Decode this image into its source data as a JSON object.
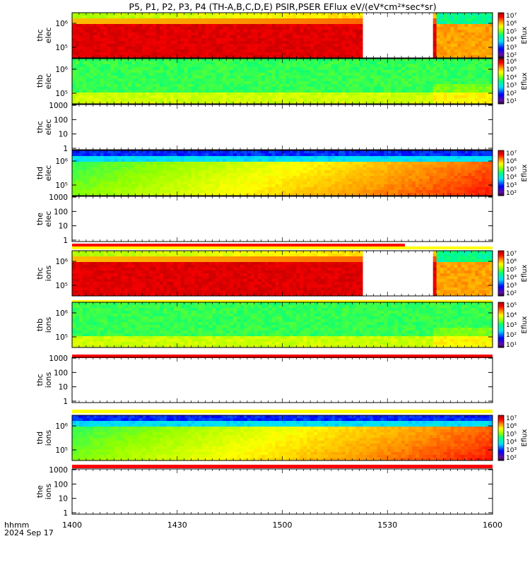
{
  "chart_data": {
    "type": "heatmap",
    "title": "P5, P1, P2, P3, P4 (TH-A,B,C,D,E) PSIR,PSER EFlux eV/(eV*cm²*sec*sr)",
    "x_label": "hhmm",
    "date_label": "2024 Sep 17",
    "x_ticks": [
      "1400",
      "1430",
      "1500",
      "1530",
      "1600"
    ],
    "xlim": [
      "1400",
      "1600"
    ],
    "panels": [
      {
        "label": "thc elec",
        "label_line1": "thc",
        "label_line2": "elec",
        "ylabels": [
          "10⁵",
          "10⁶"
        ],
        "colorbar": true,
        "cb_title": "Eflux",
        "cb_labels": [
          "10⁷",
          "10⁶",
          "10⁵",
          "10⁴",
          "10³",
          "10²"
        ],
        "pattern": "dense-red",
        "gap": [
          "1523",
          "1543"
        ]
      },
      {
        "label": "thb elec",
        "label_line1": "thb",
        "label_line2": "elec",
        "ylabels": [
          "10⁵",
          "10⁶"
        ],
        "colorbar": true,
        "cb_title": "Eflux",
        "cb_labels": [
          "10⁶",
          "10⁵",
          "10⁴",
          "10³",
          "10²",
          "10¹"
        ],
        "pattern": "green"
      },
      {
        "label": "thc elec",
        "label_line1": "thc",
        "label_line2": "elec",
        "ylabels": [
          "1",
          "10",
          "100",
          "1000"
        ],
        "colorbar": false,
        "pattern": "empty"
      },
      {
        "label": "thd elec",
        "label_line1": "thd",
        "label_line2": "elec",
        "ylabels": [
          "10⁵",
          "10⁶"
        ],
        "colorbar": true,
        "cb_title": "Eflux",
        "cb_labels": [
          "10⁷",
          "10⁶",
          "10⁵",
          "10⁴",
          "10³",
          "10²"
        ],
        "pattern": "gradient"
      },
      {
        "label": "the elec",
        "label_line1": "the",
        "label_line2": "elec",
        "ylabels": [
          "1",
          "10",
          "100",
          "1000"
        ],
        "colorbar": false,
        "pattern": "empty"
      },
      {
        "label": "thc ions",
        "label_line1": "thc",
        "label_line2": "ions",
        "ylabels": [
          "10⁵",
          "10⁶"
        ],
        "colorbar": true,
        "cb_title": "Eflux",
        "cb_labels": [
          "10⁷",
          "10⁶",
          "10⁵",
          "10⁴",
          "10³",
          "10²"
        ],
        "pattern": "dense-red",
        "gap": [
          "1523",
          "1543"
        ]
      },
      {
        "label": "thb ions",
        "label_line1": "thb",
        "label_line2": "ions",
        "ylabels": [
          "10⁵",
          "10⁶"
        ],
        "colorbar": true,
        "cb_title": "Eflux",
        "cb_labels": [
          "10⁵",
          "10⁴",
          "10³",
          "10²",
          "10¹"
        ],
        "pattern": "green"
      },
      {
        "label": "thc ions",
        "label_line1": "thc",
        "label_line2": "ions",
        "ylabels": [
          "1",
          "10",
          "100",
          "1000"
        ],
        "colorbar": false,
        "pattern": "empty"
      },
      {
        "label": "thd ions",
        "label_line1": "thd",
        "label_line2": "ions",
        "ylabels": [
          "10⁵",
          "10⁶"
        ],
        "colorbar": true,
        "cb_title": "Eflux",
        "cb_labels": [
          "10⁷",
          "10⁶",
          "10⁵",
          "10⁴",
          "10³",
          "10²"
        ],
        "pattern": "gradient"
      },
      {
        "label": "the ions",
        "label_line1": "the",
        "label_line2": "ions",
        "ylabels": [
          "1",
          "10",
          "100",
          "1000"
        ],
        "colorbar": false,
        "pattern": "empty"
      }
    ]
  }
}
